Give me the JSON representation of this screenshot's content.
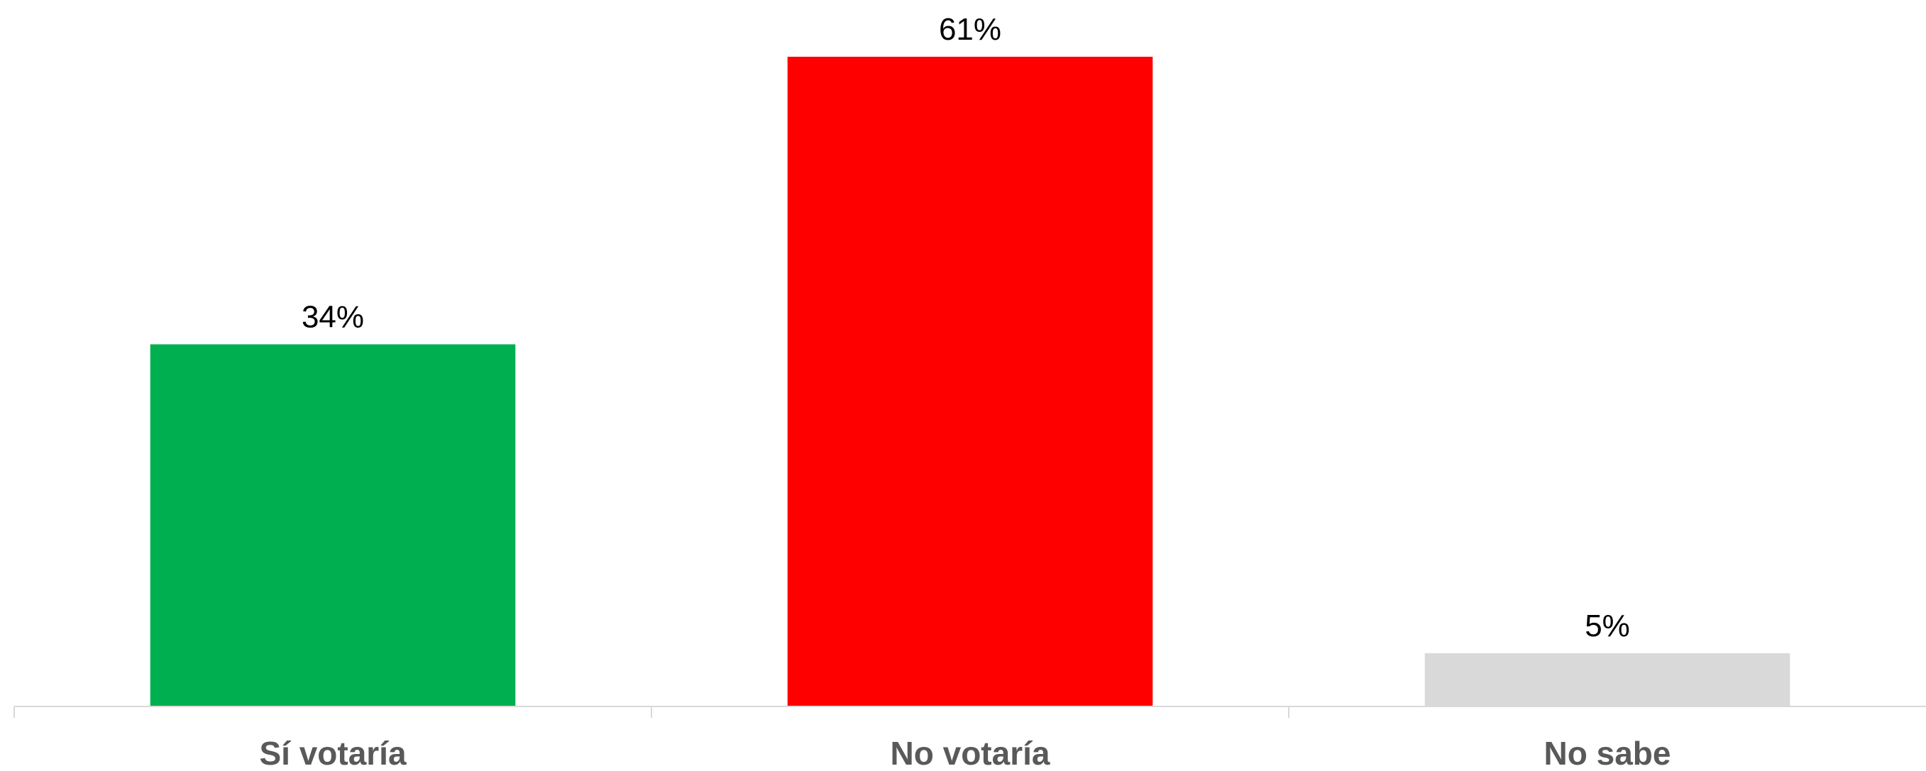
{
  "chart_data": {
    "type": "bar",
    "categories": [
      "Sí votaría",
      "No votaría",
      "No sabe"
    ],
    "values": [
      34,
      61,
      5
    ],
    "data_labels": [
      "34%",
      "61%",
      "5%"
    ],
    "colors": [
      "#00b050",
      "#ff0000",
      "#d9d9d9"
    ],
    "title": "",
    "xlabel": "",
    "ylabel": "",
    "ylim": [
      0,
      61
    ],
    "grid": false,
    "legend": "none"
  }
}
